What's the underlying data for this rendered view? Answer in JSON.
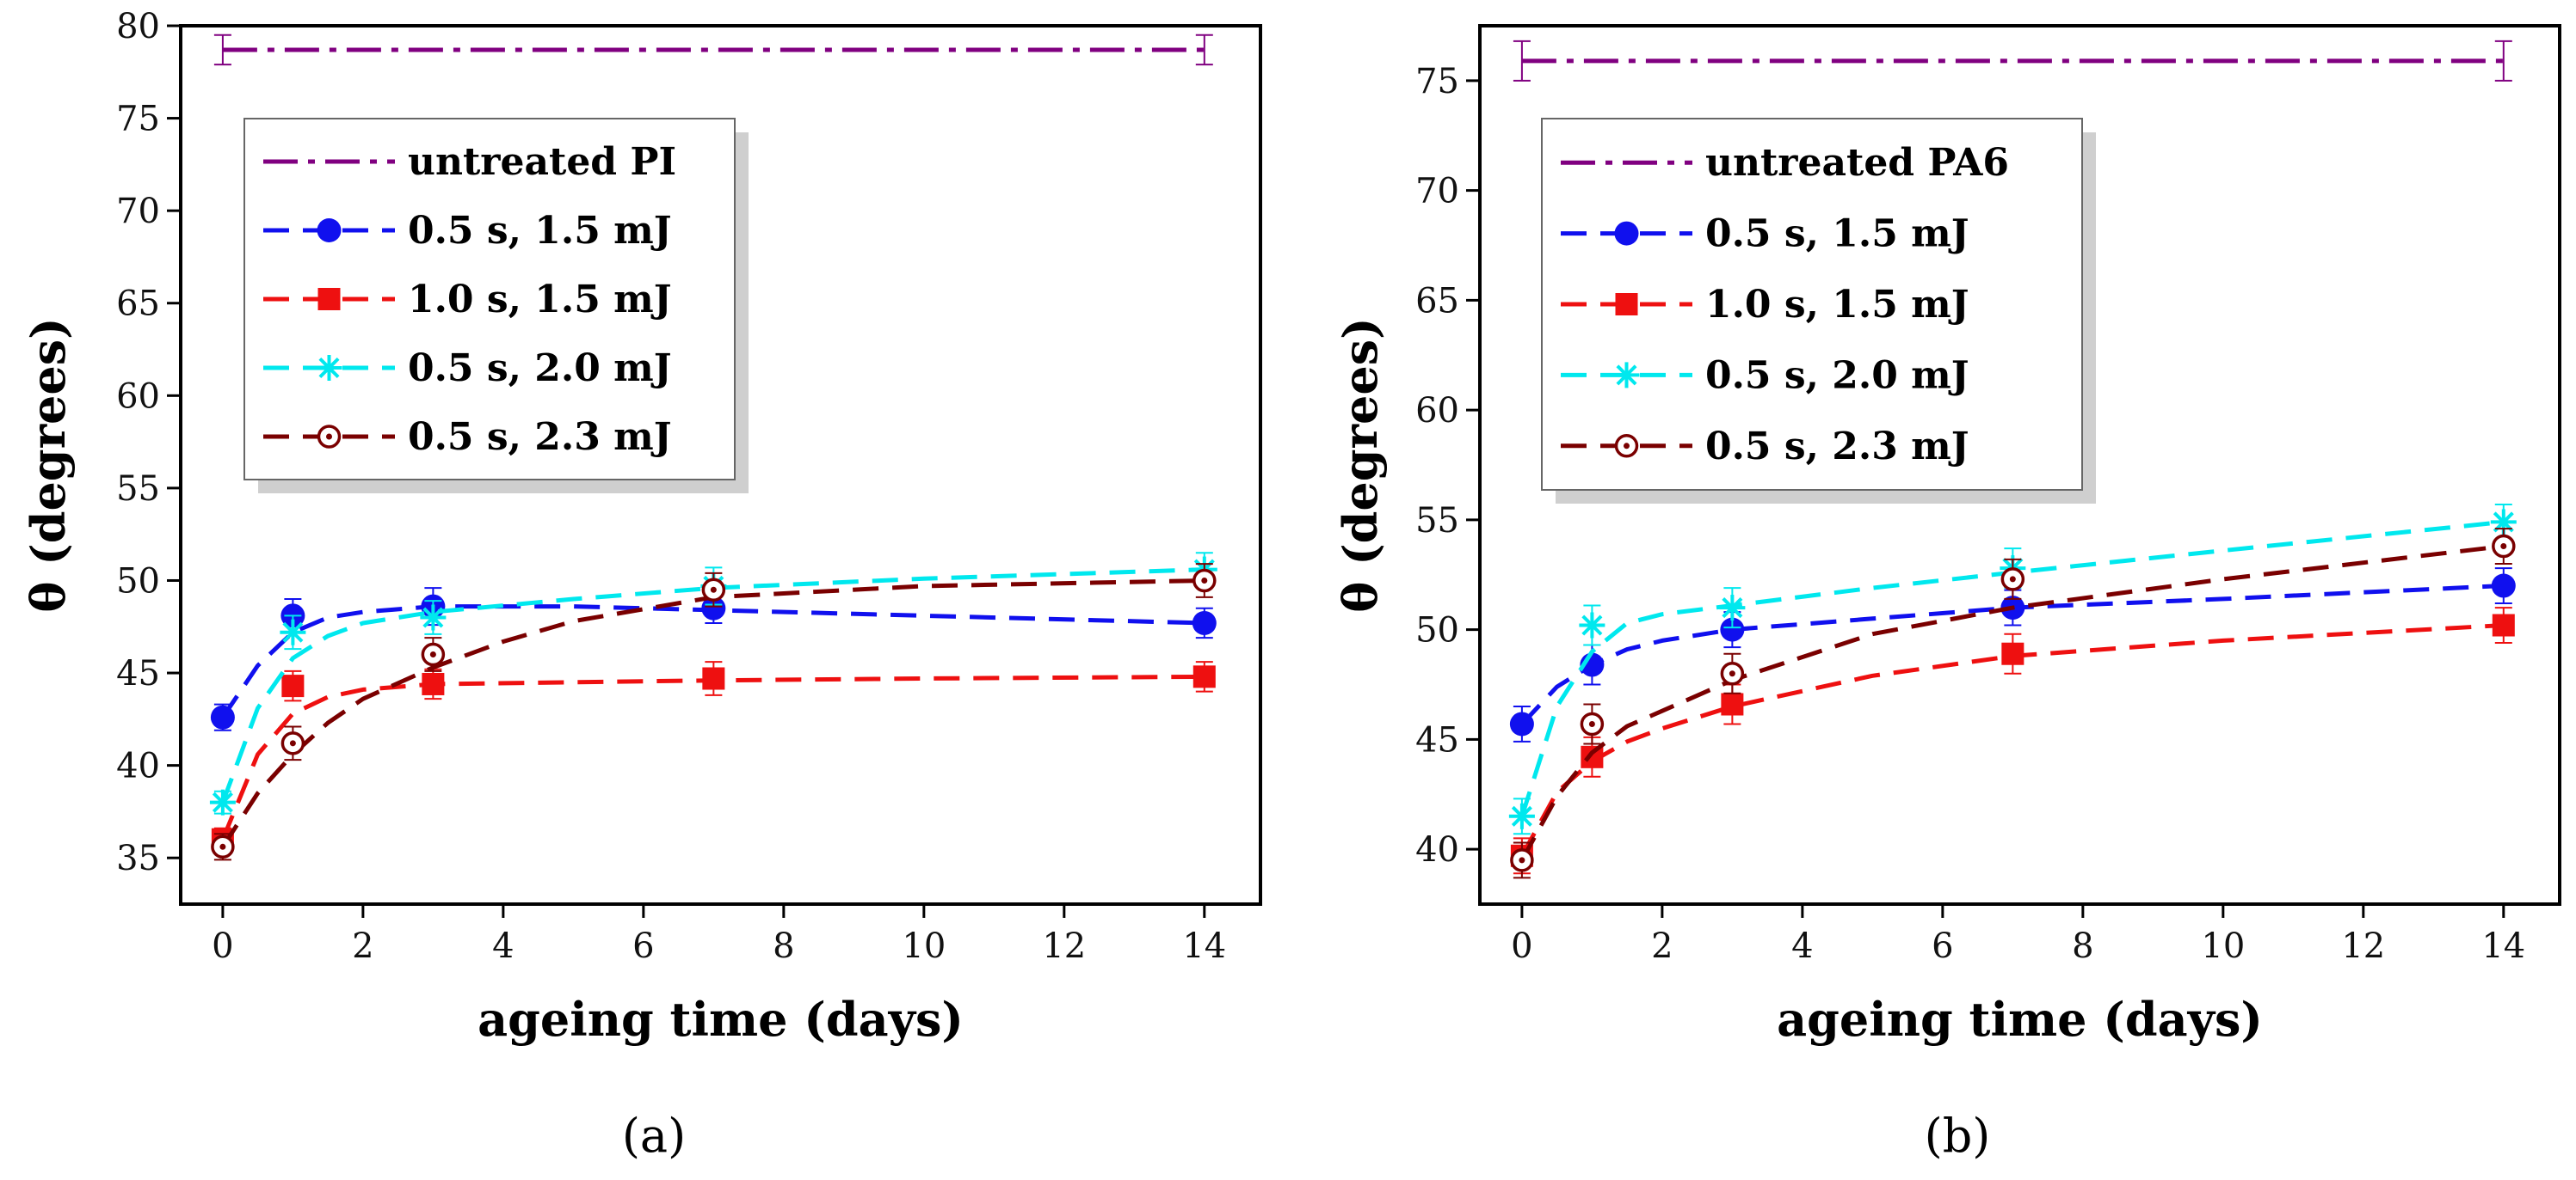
{
  "chart_data": [
    {
      "type": "line",
      "panel_label": "(a)",
      "xlabel": "ageing time (days)",
      "ylabel": "θ (degrees)",
      "xlim": [
        -0.6,
        14.8
      ],
      "ylim": [
        32.5,
        80
      ],
      "xticks": [
        0,
        2,
        4,
        6,
        8,
        10,
        12,
        14
      ],
      "yticks": [
        35,
        40,
        45,
        50,
        55,
        60,
        65,
        70,
        75,
        80
      ],
      "legend_position": "top-left",
      "reference": {
        "name": "untreated PI",
        "value": 78.7,
        "x_range": [
          0,
          14
        ],
        "error": 0.8,
        "color": "#800080"
      },
      "series": [
        {
          "name": "0.5 s, 1.5 mJ",
          "color": "#1010ee",
          "marker": "circle",
          "x": [
            0,
            1,
            3,
            7,
            14
          ],
          "values": [
            42.6,
            48.1,
            48.6,
            48.5,
            47.7
          ],
          "errors": [
            0.7,
            0.9,
            1.0,
            0.8,
            0.8
          ],
          "fit": [
            [
              0,
              42.6
            ],
            [
              0.5,
              45.4
            ],
            [
              1,
              47.2
            ],
            [
              1.5,
              48.0
            ],
            [
              2,
              48.3
            ],
            [
              3,
              48.6
            ],
            [
              5,
              48.6
            ],
            [
              7,
              48.4
            ],
            [
              10,
              48.1
            ],
            [
              14,
              47.7
            ]
          ]
        },
        {
          "name": "1.0 s, 1.5 mJ",
          "color": "#ee1010",
          "marker": "square",
          "x": [
            0,
            1,
            3,
            7,
            14
          ],
          "values": [
            36.0,
            44.3,
            44.4,
            44.7,
            44.8
          ],
          "errors": [
            0.6,
            0.8,
            0.8,
            0.9,
            0.8
          ],
          "fit": [
            [
              0,
              36.0
            ],
            [
              0.5,
              40.6
            ],
            [
              1,
              42.8
            ],
            [
              1.5,
              43.7
            ],
            [
              2,
              44.1
            ],
            [
              3,
              44.4
            ],
            [
              5,
              44.5
            ],
            [
              7,
              44.6
            ],
            [
              10,
              44.7
            ],
            [
              14,
              44.8
            ]
          ]
        },
        {
          "name": "0.5 s, 2.0 mJ",
          "color": "#00e8ee",
          "marker": "asterisk",
          "x": [
            0,
            1,
            3,
            7,
            14
          ],
          "values": [
            38.0,
            47.2,
            48.0,
            49.7,
            50.6
          ],
          "errors": [
            0.6,
            0.9,
            0.9,
            1.0,
            0.9
          ],
          "fit": [
            [
              0,
              38.0
            ],
            [
              0.5,
              43.1
            ],
            [
              1,
              45.8
            ],
            [
              1.5,
              47.0
            ],
            [
              2,
              47.7
            ],
            [
              3,
              48.3
            ],
            [
              5,
              49.0
            ],
            [
              7,
              49.6
            ],
            [
              10,
              50.1
            ],
            [
              14,
              50.6
            ]
          ]
        },
        {
          "name": "0.5 s, 2.3 mJ",
          "color": "#7a0000",
          "marker": "dotted-circle",
          "x": [
            0,
            1,
            3,
            7,
            14
          ],
          "values": [
            35.6,
            41.2,
            46.0,
            49.5,
            50.0
          ],
          "errors": [
            0.7,
            0.9,
            0.9,
            0.9,
            0.9
          ],
          "fit": [
            [
              0,
              35.6
            ],
            [
              0.5,
              38.5
            ],
            [
              1,
              40.6
            ],
            [
              1.5,
              42.3
            ],
            [
              2,
              43.6
            ],
            [
              3,
              45.3
            ],
            [
              4,
              46.7
            ],
            [
              5,
              47.8
            ],
            [
              7,
              49.1
            ],
            [
              10,
              49.7
            ],
            [
              14,
              50.0
            ]
          ]
        }
      ]
    },
    {
      "type": "line",
      "panel_label": "(b)",
      "xlabel": "ageing time (days)",
      "ylabel": "θ (degrees)",
      "xlim": [
        -0.6,
        14.8
      ],
      "ylim": [
        37.5,
        77.5
      ],
      "xticks": [
        0,
        2,
        4,
        6,
        8,
        10,
        12,
        14
      ],
      "yticks": [
        40,
        45,
        50,
        55,
        60,
        65,
        70,
        75
      ],
      "legend_position": "top-left",
      "reference": {
        "name": "untreated PA6",
        "value": 75.9,
        "x_range": [
          0,
          14
        ],
        "error": 0.9,
        "color": "#800080"
      },
      "series": [
        {
          "name": "0.5 s, 1.5 mJ",
          "color": "#1010ee",
          "marker": "circle",
          "x": [
            0,
            1,
            3,
            7,
            14
          ],
          "values": [
            45.7,
            48.4,
            50.0,
            51.0,
            52.0
          ],
          "errors": [
            0.8,
            0.9,
            0.8,
            0.8,
            0.8
          ],
          "fit": [
            [
              0,
              45.7
            ],
            [
              0.5,
              47.4
            ],
            [
              1,
              48.4
            ],
            [
              1.5,
              49.1
            ],
            [
              2,
              49.5
            ],
            [
              3,
              50.0
            ],
            [
              5,
              50.5
            ],
            [
              7,
              51.0
            ],
            [
              10,
              51.4
            ],
            [
              14,
              52.0
            ]
          ]
        },
        {
          "name": "1.0 s, 1.5 mJ",
          "color": "#ee1010",
          "marker": "square",
          "x": [
            0,
            1,
            3,
            7,
            14
          ],
          "values": [
            39.7,
            44.2,
            46.6,
            48.9,
            50.2
          ],
          "errors": [
            0.8,
            0.9,
            0.9,
            0.9,
            0.8
          ],
          "fit": [
            [
              0,
              39.7
            ],
            [
              0.5,
              42.6
            ],
            [
              1,
              44.0
            ],
            [
              1.5,
              44.9
            ],
            [
              2,
              45.5
            ],
            [
              3,
              46.5
            ],
            [
              5,
              47.9
            ],
            [
              7,
              48.8
            ],
            [
              10,
              49.5
            ],
            [
              14,
              50.2
            ]
          ]
        },
        {
          "name": "0.5 s, 2.0 mJ",
          "color": "#00e8ee",
          "marker": "asterisk",
          "x": [
            0,
            1,
            3,
            7,
            14
          ],
          "values": [
            41.5,
            50.2,
            51.0,
            52.8,
            54.9
          ],
          "errors": [
            0.8,
            0.9,
            0.9,
            0.9,
            0.8
          ],
          "fit": [
            [
              0,
              41.5
            ],
            [
              0.5,
              46.5
            ],
            [
              1,
              49.0
            ],
            [
              1.5,
              50.3
            ],
            [
              2,
              50.7
            ],
            [
              3,
              51.1
            ],
            [
              5,
              51.9
            ],
            [
              7,
              52.6
            ],
            [
              10,
              53.6
            ],
            [
              14,
              54.9
            ]
          ]
        },
        {
          "name": "0.5 s, 2.3 mJ",
          "color": "#7a0000",
          "marker": "dotted-circle",
          "x": [
            0,
            1,
            3,
            7,
            14
          ],
          "values": [
            39.5,
            45.7,
            48.0,
            52.3,
            53.8
          ],
          "errors": [
            0.8,
            0.9,
            0.9,
            0.9,
            0.8
          ],
          "fit": [
            [
              0,
              39.5
            ],
            [
              0.5,
              42.4
            ],
            [
              1,
              44.4
            ],
            [
              1.5,
              45.6
            ],
            [
              2,
              46.3
            ],
            [
              3,
              47.7
            ],
            [
              5,
              49.8
            ],
            [
              7,
              51.0
            ],
            [
              10,
              52.3
            ],
            [
              14,
              53.8
            ]
          ]
        }
      ]
    }
  ]
}
